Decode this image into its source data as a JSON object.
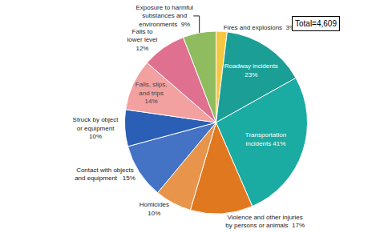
{
  "chart_data": {
    "type": "pie",
    "values": [
      3,
      23,
      41,
      17,
      10,
      15,
      10,
      14,
      12,
      9
    ],
    "value_labels": [
      "Fires and explosions  3%",
      "Roadway incidents\n23%",
      "Transportation\nincidents 41%",
      "Violence and other injuries\nby persons or animals  17%",
      "Homicides\n10%",
      "Contact with objects\nand equipment   15%",
      "Struck by object\nor equipment\n10%",
      "Falls, slips,\nand trips\n14%",
      "Falls to\nlower level\n12%",
      "Exposure to harmful\nsubstances and\nenvironments  9%"
    ],
    "colors": [
      "#f5c842",
      "#1a9e96",
      "#1aaba3",
      "#e07820",
      "#e8944a",
      "#4472c4",
      "#2b5eb5",
      "#f2a0a0",
      "#e07090",
      "#8fbc5e"
    ],
    "data_labels": true,
    "annotations": [
      "Total=4,609"
    ]
  }
}
